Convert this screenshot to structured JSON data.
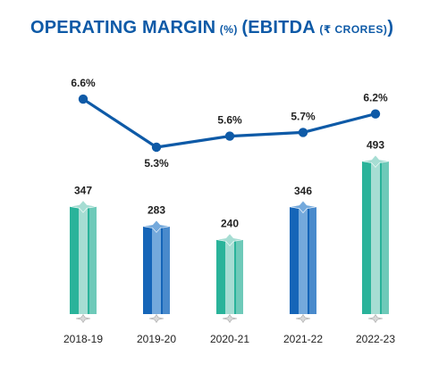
{
  "title": {
    "main": "OPERATING MARGIN",
    "main_unit": "(%)",
    "second_open": "(EBITDA",
    "second_unit": "(₹ CRORES)",
    "second_close": ")"
  },
  "colors": {
    "title": "#0e5aa7",
    "line": "#0e5aa7",
    "teal_bar": "#2ab39a",
    "teal_light": "#a6ddd3",
    "blue_bar": "#1565b8",
    "blue_light": "#74a9dc",
    "text": "#222222"
  },
  "chart_data": [
    {
      "type": "line",
      "categories": [
        "2018-19",
        "2019-20",
        "2020-21",
        "2021-22",
        "2022-23"
      ],
      "series": [
        {
          "values": [
            6.6,
            5.3,
            5.6,
            5.7,
            6.2
          ]
        }
      ],
      "data_labels": [
        "6.6%",
        "5.3%",
        "5.6%",
        "5.7%",
        "6.2%"
      ],
      "title": "OPERATING MARGIN (%)",
      "xlabel": "",
      "ylabel": "",
      "ylim": [
        5.0,
        7.0
      ],
      "grid": false
    },
    {
      "type": "bar",
      "categories": [
        "2018-19",
        "2019-20",
        "2020-21",
        "2021-22",
        "2022-23"
      ],
      "values": [
        347,
        283,
        240,
        346,
        493
      ],
      "data_labels": [
        "347",
        "283",
        "240",
        "346",
        "493"
      ],
      "bar_colors": [
        "teal",
        "blue",
        "teal",
        "blue",
        "teal"
      ],
      "title": "EBITDA (₹ CRORES)",
      "xlabel": "",
      "ylabel": "",
      "ylim": [
        0,
        550
      ],
      "grid": false
    }
  ]
}
